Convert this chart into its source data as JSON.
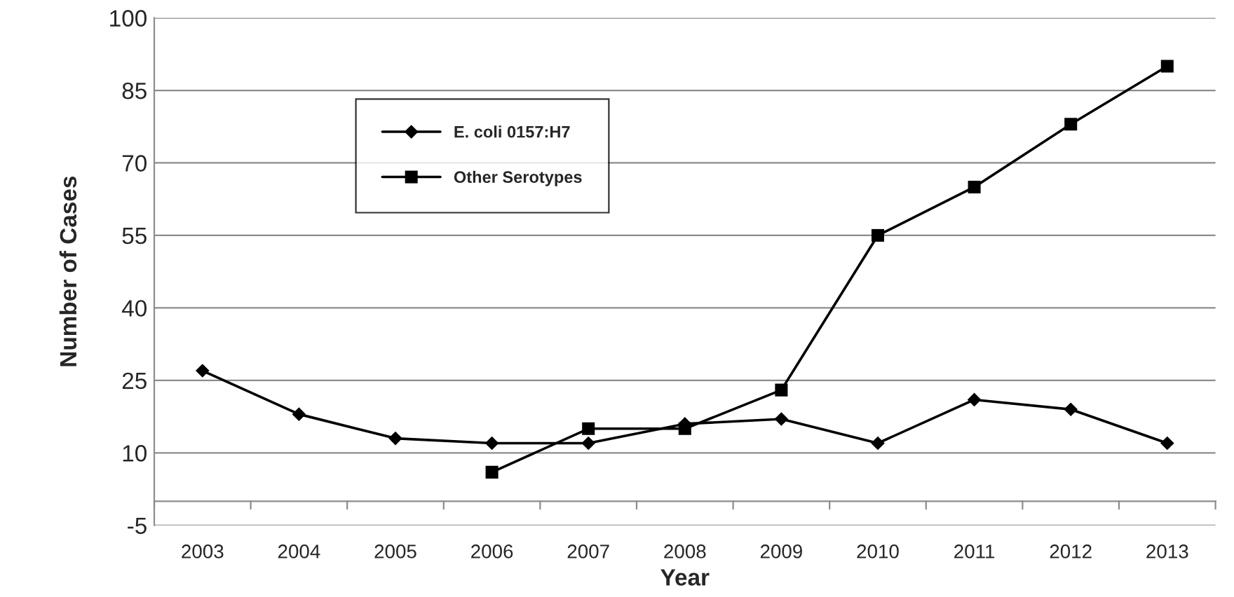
{
  "chart_data": {
    "type": "line",
    "xlabel": "Year",
    "ylabel": "Number of Cases",
    "categories": [
      "2003",
      "2004",
      "2005",
      "2006",
      "2007",
      "2008",
      "2009",
      "2010",
      "2011",
      "2012",
      "2013"
    ],
    "series": [
      {
        "name": "E. coli 0157:H7",
        "color": "#000000",
        "marker": "diamond",
        "values": [
          27,
          18,
          13,
          12,
          12,
          16,
          17,
          12,
          21,
          19,
          12
        ]
      },
      {
        "name": "Other Serotypes",
        "color": "#000000",
        "marker": "square",
        "values": [
          null,
          null,
          null,
          6,
          15,
          15,
          23,
          55,
          65,
          78,
          90
        ]
      }
    ],
    "ylim": [
      -5,
      100
    ],
    "yticks": [
      -5,
      10,
      25,
      40,
      55,
      70,
      85,
      100
    ],
    "grid": "y",
    "legend": "top left",
    "line_style": "solid"
  }
}
